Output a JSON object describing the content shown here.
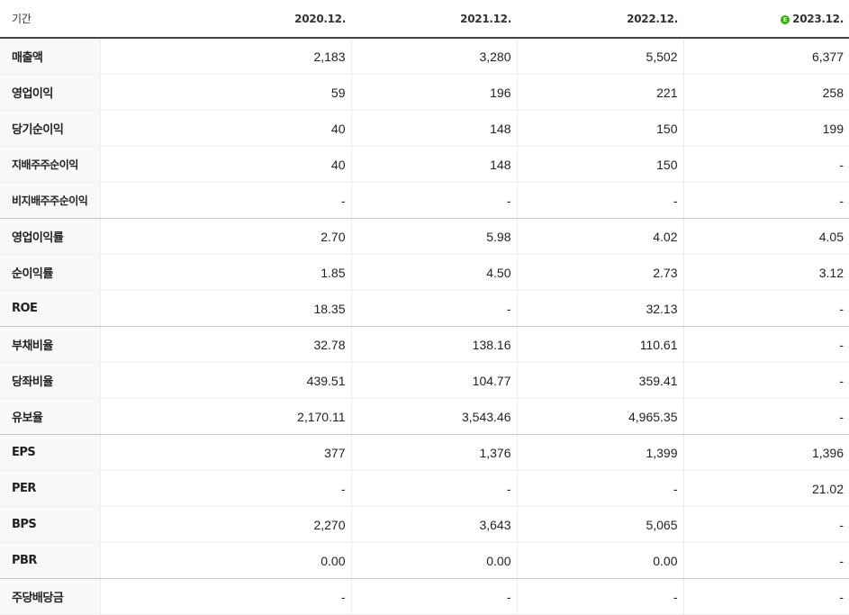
{
  "header": {
    "period_label": "기간",
    "columns": [
      "2020.12.",
      "2021.12.",
      "2022.12.",
      "2023.12."
    ],
    "estimate_badge": "E"
  },
  "rows": [
    {
      "label": "매출액",
      "values": [
        "2,183",
        "3,280",
        "5,502",
        "6,377"
      ]
    },
    {
      "label": "영업이익",
      "values": [
        "59",
        "196",
        "221",
        "258"
      ]
    },
    {
      "label": "당기순이익",
      "values": [
        "40",
        "148",
        "150",
        "199"
      ]
    },
    {
      "label": "지배주주순이익",
      "values": [
        "40",
        "148",
        "150",
        "-"
      ]
    },
    {
      "label": "비지배주주순이익",
      "values": [
        "-",
        "-",
        "-",
        "-"
      ]
    },
    {
      "label": "영업이익률",
      "values": [
        "2.70",
        "5.98",
        "4.02",
        "4.05"
      ]
    },
    {
      "label": "순이익률",
      "values": [
        "1.85",
        "4.50",
        "2.73",
        "3.12"
      ]
    },
    {
      "label": "ROE",
      "values": [
        "18.35",
        "-",
        "32.13",
        "-"
      ]
    },
    {
      "label": "부채비율",
      "values": [
        "32.78",
        "138.16",
        "110.61",
        "-"
      ]
    },
    {
      "label": "당좌비율",
      "values": [
        "439.51",
        "104.77",
        "359.41",
        "-"
      ]
    },
    {
      "label": "유보율",
      "values": [
        "2,170.11",
        "3,543.46",
        "4,965.35",
        "-"
      ]
    },
    {
      "label": "EPS",
      "values": [
        "377",
        "1,376",
        "1,399",
        "1,396"
      ]
    },
    {
      "label": "PER",
      "values": [
        "-",
        "-",
        "-",
        "21.02"
      ]
    },
    {
      "label": "BPS",
      "values": [
        "2,270",
        "3,643",
        "5,065",
        "-"
      ]
    },
    {
      "label": "PBR",
      "values": [
        "0.00",
        "0.00",
        "0.00",
        "-"
      ]
    },
    {
      "label": "주당배당금",
      "values": [
        "-",
        "-",
        "-",
        "-"
      ]
    }
  ]
}
